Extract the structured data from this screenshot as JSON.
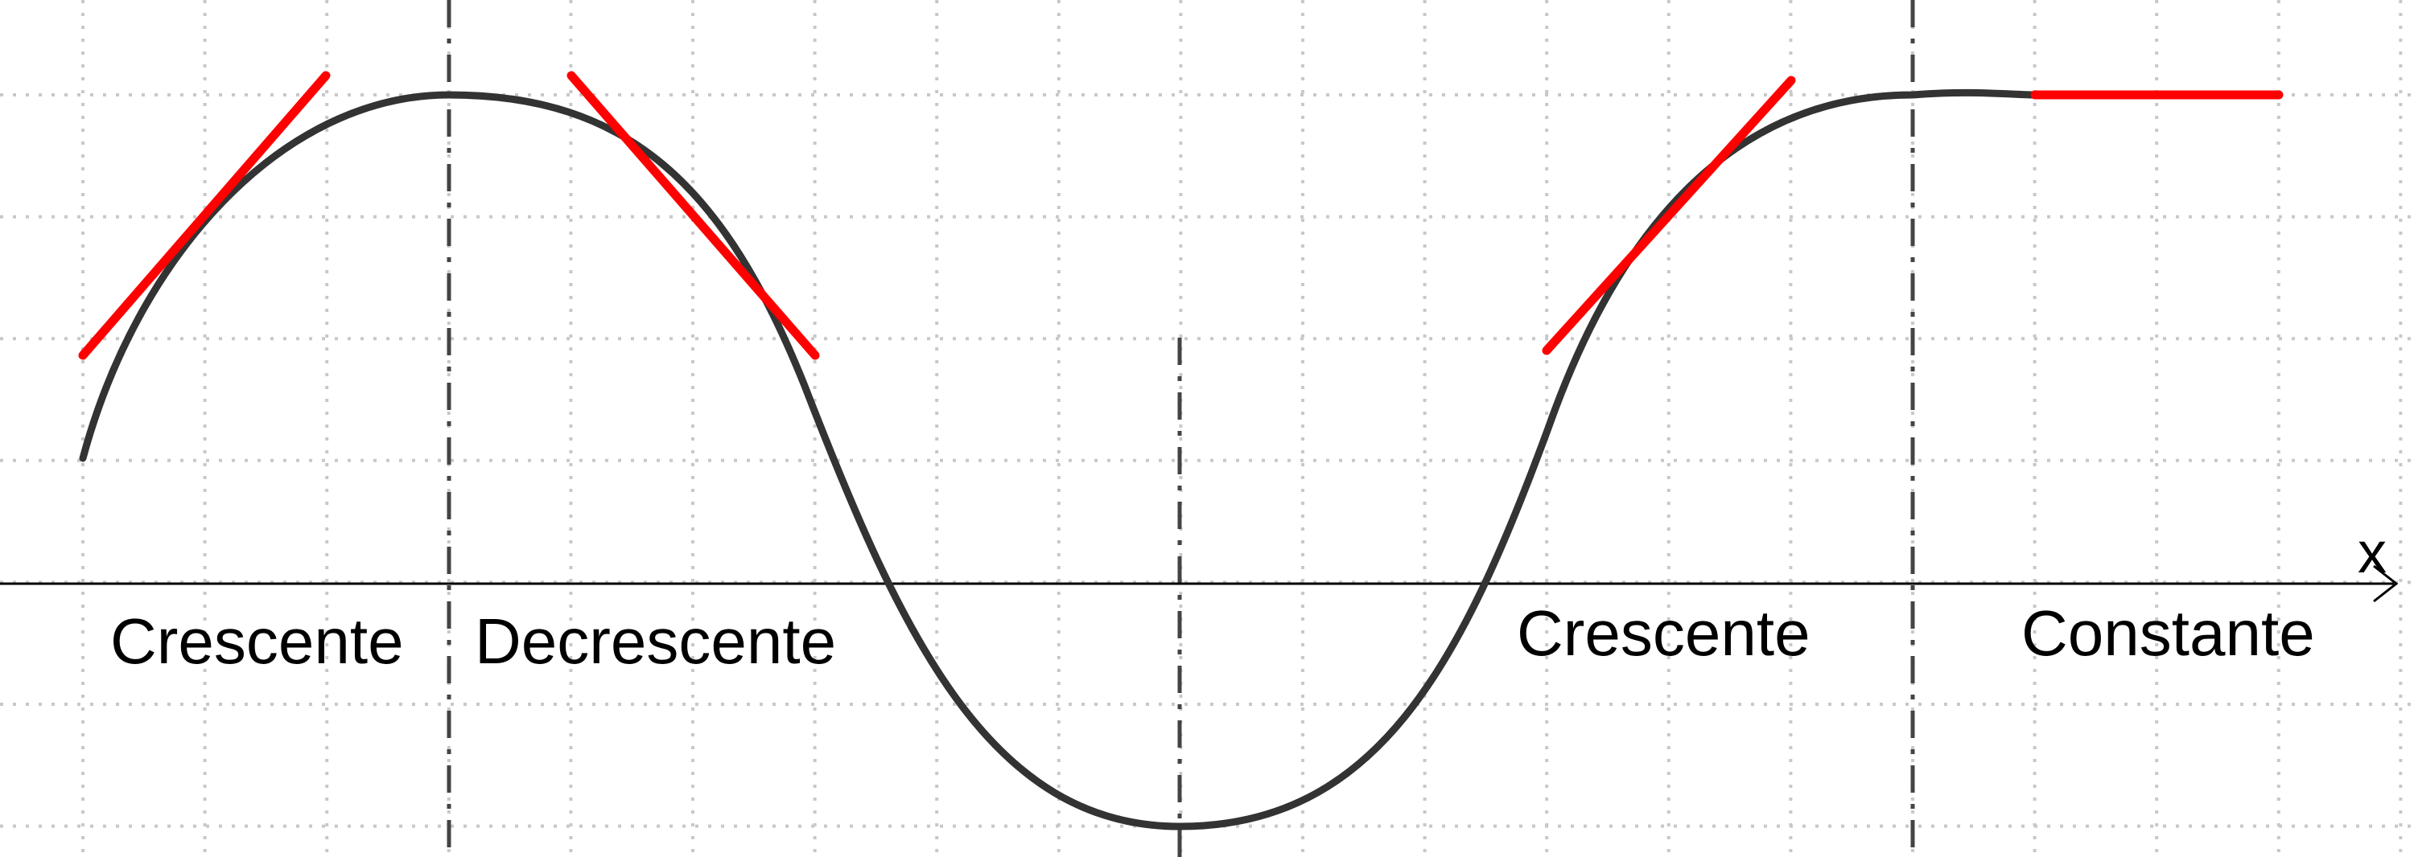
{
  "diagram": {
    "axis_label": "x",
    "regions": [
      {
        "id": "crescente-1",
        "label": "Crescente"
      },
      {
        "id": "decrescente",
        "label": "Decrescente"
      },
      {
        "id": "crescente-2",
        "label": "Crescente"
      },
      {
        "id": "constante",
        "label": "Constante"
      }
    ],
    "colors": {
      "curve": "#333333",
      "tangent": "#ff0000",
      "grid": "#c8c8c8",
      "divider": "#444444",
      "axis": "#000000",
      "background": "#ffffff"
    }
  }
}
